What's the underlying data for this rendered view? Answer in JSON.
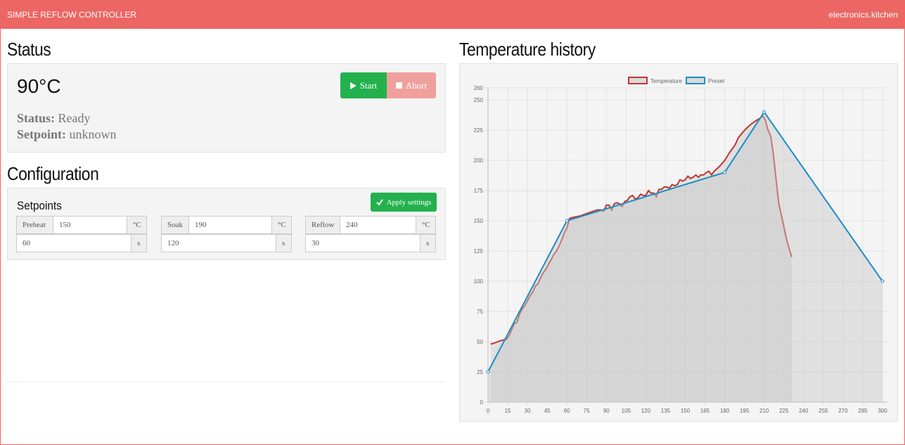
{
  "navbar": {
    "brand": "SIMPLE REFLOW CONTROLLER",
    "link": "electronics.kitchen"
  },
  "status": {
    "heading": "Status",
    "temperature": "90°C",
    "start": "Start",
    "abort": "Abort",
    "status_label": "Status:",
    "status_value": "Ready",
    "setpoint_label": "Setpoint:",
    "setpoint_value": "unknown"
  },
  "configuration": {
    "heading": "Configuration",
    "panel_title": "Setpoints",
    "apply": "Apply settings",
    "groups": [
      {
        "label": "Preheat",
        "temperature": "150",
        "temp_unit": "°C",
        "time": "60",
        "time_unit": "s"
      },
      {
        "label": "Soak",
        "temperature": "190",
        "temp_unit": "°C",
        "time": "120",
        "time_unit": "s"
      },
      {
        "label": "Reflow",
        "temperature": "240",
        "temp_unit": "°C",
        "time": "30",
        "time_unit": "s"
      }
    ]
  },
  "chart_data": {
    "type": "line",
    "title": "Temperature history",
    "xlim": [
      0,
      300
    ],
    "xticks": [
      0,
      15,
      30,
      45,
      60,
      75,
      90,
      105,
      120,
      135,
      150,
      165,
      180,
      195,
      210,
      225,
      240,
      255,
      270,
      285,
      300
    ],
    "ylim": [
      0,
      260
    ],
    "yticks": [
      0,
      25,
      50,
      75,
      100,
      125,
      150,
      175,
      200,
      225,
      250,
      260
    ],
    "grid": true,
    "series": [
      {
        "name": "Temperature",
        "color": "#c23531",
        "x": [
          2,
          5,
          10,
          14,
          16,
          18,
          20,
          22,
          24,
          26,
          28,
          30,
          32,
          34,
          36,
          38,
          40,
          42,
          44,
          46,
          48,
          50,
          52,
          54,
          56,
          58,
          60,
          61,
          62,
          65,
          70,
          75,
          80,
          83,
          86,
          88,
          90,
          92,
          94,
          96,
          98,
          100,
          102,
          104,
          106,
          108,
          110,
          112,
          114,
          116,
          118,
          120,
          122,
          124,
          126,
          128,
          130,
          132,
          134,
          136,
          138,
          140,
          142,
          144,
          146,
          148,
          150,
          152,
          154,
          156,
          158,
          160,
          162,
          164,
          166,
          168,
          170,
          172,
          176,
          180,
          184,
          188,
          190,
          192,
          196,
          200,
          204,
          207,
          209,
          211,
          213,
          215,
          217,
          219,
          221,
          223,
          225,
          227,
          229,
          231
        ],
        "values": [
          48,
          49,
          51,
          52,
          55,
          60,
          65,
          66,
          73,
          77,
          80,
          84,
          88,
          91,
          96,
          98,
          103,
          107,
          110,
          114,
          118,
          122,
          125,
          129,
          134,
          140,
          144,
          148,
          152,
          153,
          154,
          156,
          158,
          159,
          159,
          158,
          163,
          163,
          159,
          164,
          165,
          164,
          162,
          166,
          167,
          170,
          171,
          168,
          169,
          172,
          171,
          171,
          175,
          173,
          173,
          170,
          176,
          176,
          178,
          178,
          177,
          180,
          179,
          180,
          184,
          183,
          184,
          187,
          185,
          186,
          188,
          186,
          188,
          188,
          190,
          191,
          188,
          191,
          195,
          200,
          207,
          213,
          218,
          221,
          226,
          230,
          233,
          235,
          237,
          233,
          225,
          220,
          205,
          185,
          165,
          155,
          145,
          135,
          127,
          120
        ]
      },
      {
        "name": "Preset",
        "color": "#1a8fc4",
        "x": [
          0,
          60,
          180,
          210,
          300
        ],
        "values": [
          25,
          150,
          190,
          240,
          100
        ]
      }
    ]
  }
}
